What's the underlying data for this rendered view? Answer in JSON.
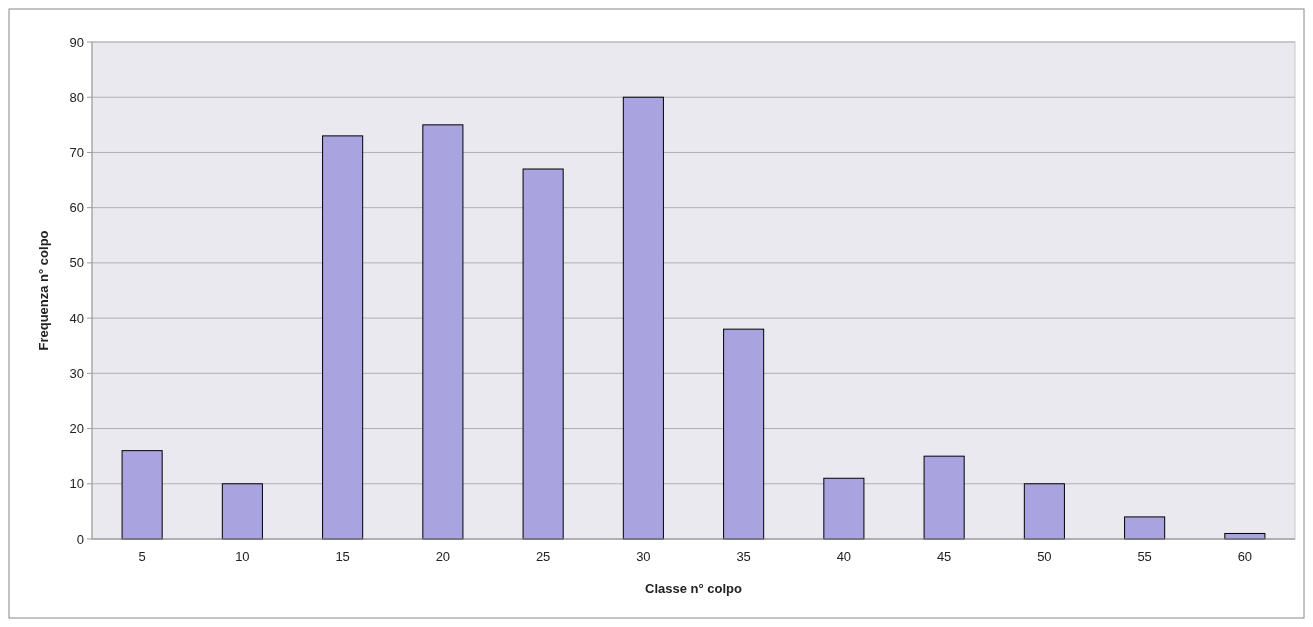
{
  "chart_data": {
    "type": "bar",
    "xlabel": "Classe n° colpo",
    "ylabel": "Frequenza n° colpo",
    "categories": [
      "5",
      "10",
      "15",
      "20",
      "25",
      "30",
      "35",
      "40",
      "45",
      "50",
      "55",
      "60"
    ],
    "values": [
      16,
      10,
      73,
      75,
      67,
      80,
      38,
      11,
      15,
      10,
      4,
      1
    ],
    "color": "#a9a3e0",
    "ylim": [
      0,
      90
    ],
    "yticks": [
      0,
      10,
      20,
      30,
      40,
      50,
      60,
      70,
      80,
      90
    ],
    "grid": "y"
  }
}
